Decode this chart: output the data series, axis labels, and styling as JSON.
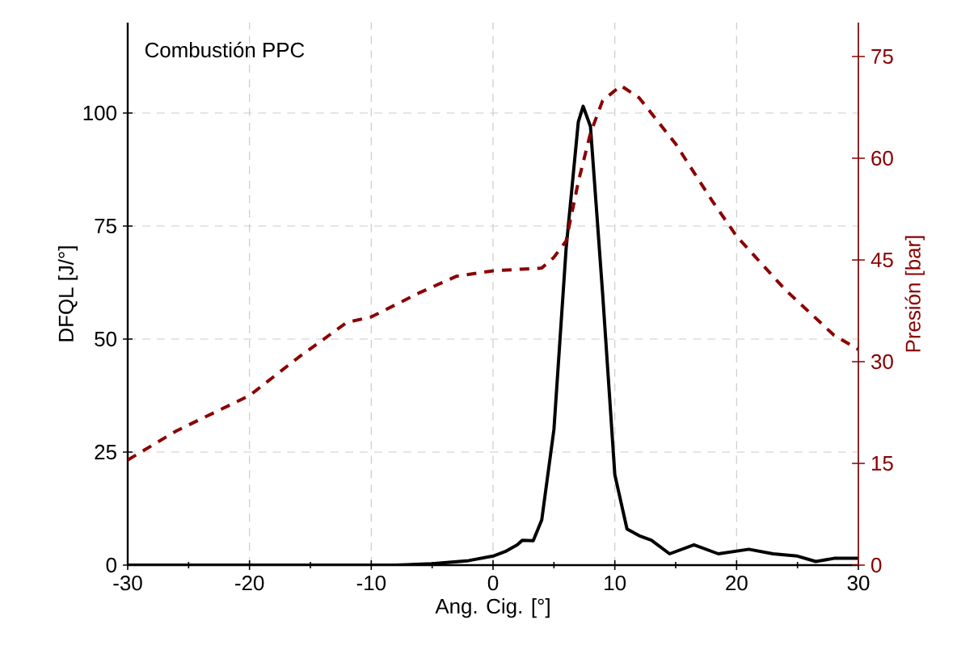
{
  "chart_data": {
    "type": "line",
    "title": "Combustión PPC",
    "xlabel": "Ang. Cig. [°]",
    "ylabel": "DFQL [J/°]",
    "y2label": "Presión [bar]",
    "xlim": [
      -30,
      30
    ],
    "xticks": [
      -30,
      -20,
      -10,
      0,
      10,
      20,
      30
    ],
    "ylim": [
      0,
      120
    ],
    "yticks": [
      0,
      25,
      50,
      75,
      100
    ],
    "y2lim": [
      0,
      80
    ],
    "y2ticks": [
      0,
      15,
      30,
      45,
      60,
      75
    ],
    "grid": true,
    "series": [
      {
        "color": "#000000",
        "line_style": "solid",
        "x": [
          -30,
          -20,
          -10,
          -8,
          -5,
          -2,
          0,
          1,
          2,
          2.4,
          3.3,
          4,
          5,
          6,
          7,
          7.4,
          8,
          9,
          10,
          11,
          12,
          13,
          14.5,
          16.5,
          18.5,
          21,
          23,
          25,
          26.5,
          28,
          30
        ],
        "values": [
          0,
          0,
          0,
          0,
          0.3,
          1,
          2,
          3,
          4.5,
          5.5,
          5.4,
          10,
          30,
          70,
          98,
          101.5,
          97,
          60,
          20,
          8,
          6.5,
          5.5,
          2.5,
          4.5,
          2.5,
          3.5,
          2.5,
          2,
          0.8,
          1.5,
          1.5
        ]
      },
      {
        "color": "#8b0000",
        "line_style": "dashed",
        "axis": "y2",
        "x": [
          -30,
          -26,
          -20,
          -16,
          -12,
          -10,
          -6,
          -3,
          0,
          4,
          5,
          6,
          7,
          8,
          9,
          10.5,
          12,
          15,
          18,
          20,
          24,
          28,
          30
        ],
        "values": [
          15.5,
          19.8,
          25,
          30.6,
          35.8,
          36.6,
          40.2,
          42.6,
          43.4,
          43.8,
          45.4,
          47.8,
          56.5,
          63.7,
          68.5,
          70.7,
          68.9,
          62.1,
          53.7,
          48.5,
          40.6,
          33.9,
          31.8
        ]
      }
    ]
  }
}
